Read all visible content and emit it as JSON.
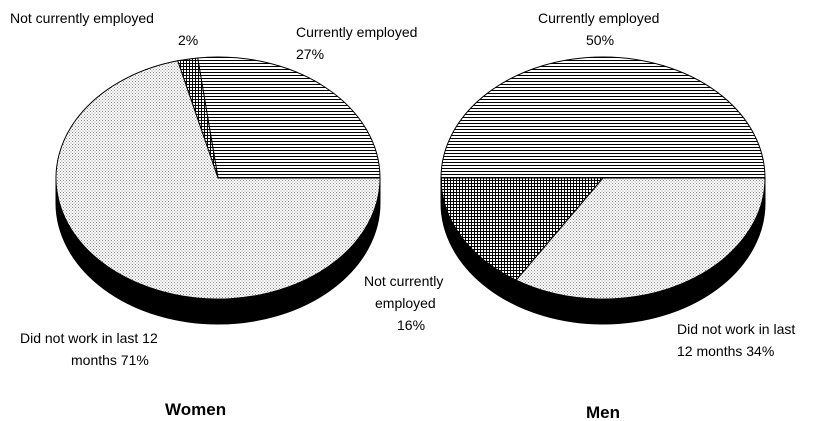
{
  "chart_data": [
    {
      "type": "pie",
      "title": "Women",
      "categories": [
        "Currently employed",
        "Not currently employed",
        "Did not work in last 12 months"
      ],
      "values": [
        27,
        2,
        71
      ],
      "labels": [
        [
          "Currently employed",
          "27%"
        ],
        [
          "Not currently employed",
          "2%"
        ],
        [
          "Did not work in last 12",
          "months 71%"
        ]
      ],
      "style": "3d-pie",
      "fills": [
        "horizontal-hatch",
        "cross-hatch",
        "dotted"
      ]
    },
    {
      "type": "pie",
      "title": "Men",
      "categories": [
        "Currently employed",
        "Not currently employed",
        "Did not work in last 12 months"
      ],
      "values": [
        50,
        16,
        34
      ],
      "labels": [
        [
          "Currently employed",
          "50%"
        ],
        [
          "Not currently",
          "employed",
          "16%"
        ],
        [
          "Did not work in last",
          "12 months 34%"
        ]
      ],
      "style": "3d-pie",
      "fills": [
        "horizontal-hatch",
        "cross-hatch",
        "dotted"
      ]
    }
  ],
  "colors": {
    "edge": "#000000",
    "side": "#000000",
    "background": "#ffffff"
  }
}
